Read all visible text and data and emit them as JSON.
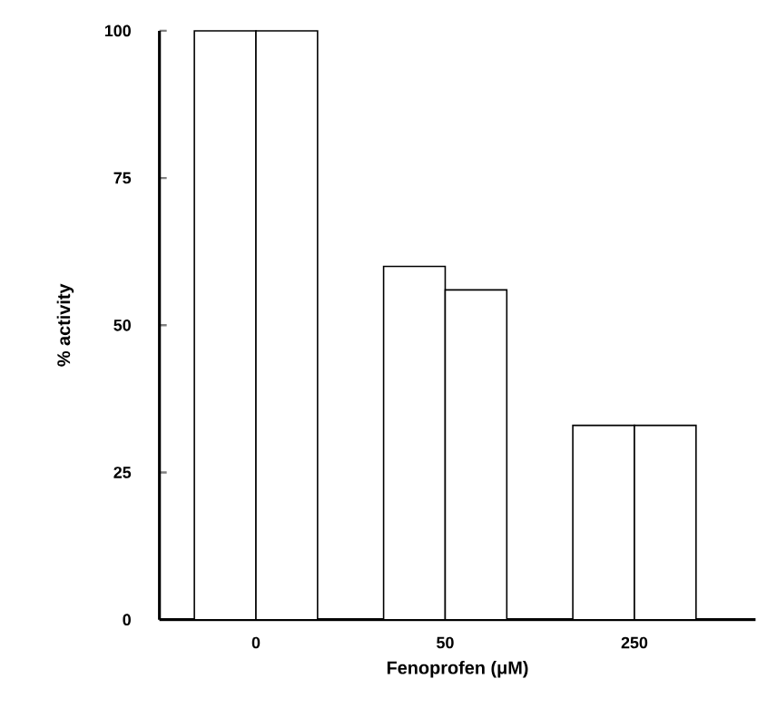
{
  "chart_data": {
    "type": "bar",
    "categories": [
      "0",
      "50",
      "250"
    ],
    "series": [
      {
        "color": "#000000",
        "values": [
          100,
          60,
          33
        ]
      },
      {
        "color": "#000000",
        "values": [
          100,
          56,
          33
        ]
      }
    ],
    "xlabel": "Fenoprofen (μM)",
    "ylabel": "% activity",
    "ylim": [
      0,
      100
    ],
    "yticks": [
      0,
      25,
      50,
      75,
      100
    ]
  }
}
